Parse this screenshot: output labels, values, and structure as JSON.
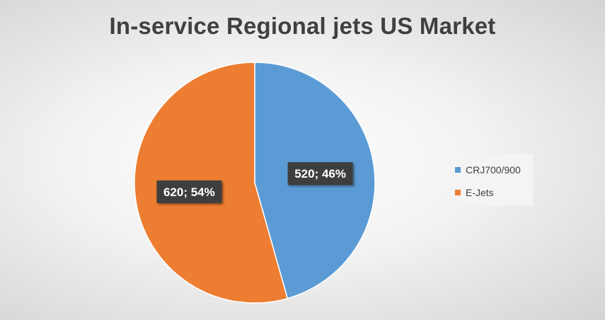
{
  "chart_data": {
    "type": "pie",
    "title": "In-service Regional jets US Market",
    "slices": [
      {
        "label": "CRJ700/900",
        "value": 520,
        "percent": 46,
        "data_label": "520; 46%",
        "color": "#5b9bd5"
      },
      {
        "label": "E-Jets",
        "value": 620,
        "percent": 54,
        "data_label": "620; 54%",
        "color": "#ed7d31"
      }
    ],
    "legend_position": "right"
  }
}
